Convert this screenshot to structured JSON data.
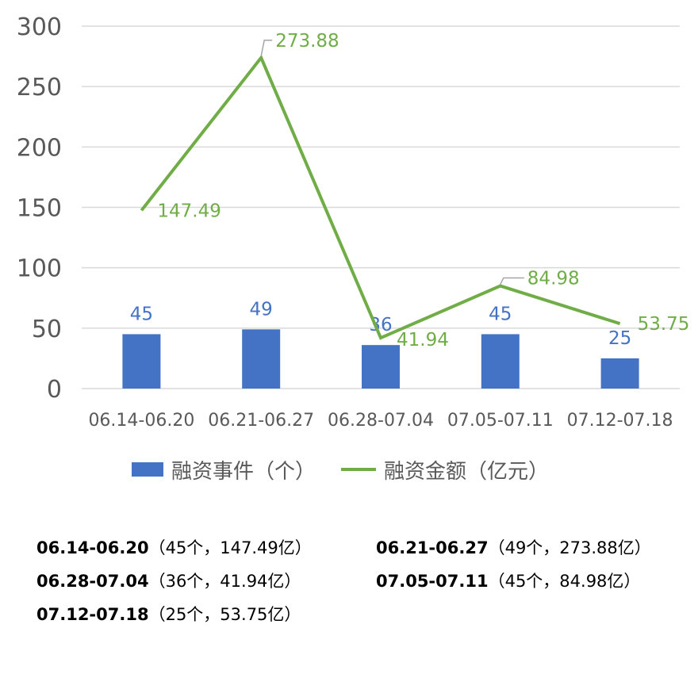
{
  "chart_data": {
    "type": "bar+line",
    "categories": [
      "06.14-06.20",
      "06.21-06.27",
      "06.28-07.04",
      "07.05-07.11",
      "07.12-07.18"
    ],
    "series": [
      {
        "name": "融资事件（个）",
        "type": "bar",
        "values": [
          45,
          49,
          36,
          45,
          25
        ],
        "color": "#4472C4"
      },
      {
        "name": "融资金额（亿元）",
        "type": "line",
        "values": [
          147.49,
          273.88,
          41.94,
          84.98,
          53.75
        ],
        "color": "#70AD47"
      }
    ],
    "bar_labels": [
      "45",
      "49",
      "36",
      "45",
      "25"
    ],
    "line_labels": [
      "147.49",
      "273.88",
      "41.94",
      "84.98",
      "53.75"
    ],
    "y_ticks": [
      "0",
      "50",
      "100",
      "150",
      "200",
      "250",
      "300"
    ],
    "ylim": [
      0,
      300
    ],
    "grid": true,
    "legend_position": "bottom"
  },
  "summary": [
    {
      "period": "06.14-06.20",
      "detail": "（45个，147.49亿）"
    },
    {
      "period": "06.21-06.27",
      "detail": "（49个，273.88亿）"
    },
    {
      "period": "06.28-07.04",
      "detail": "（36个，41.94亿）"
    },
    {
      "period": "07.05-07.11",
      "detail": "（45个，84.98亿）"
    },
    {
      "period": "07.12-07.18",
      "detail": "（25个，53.75亿）"
    }
  ]
}
